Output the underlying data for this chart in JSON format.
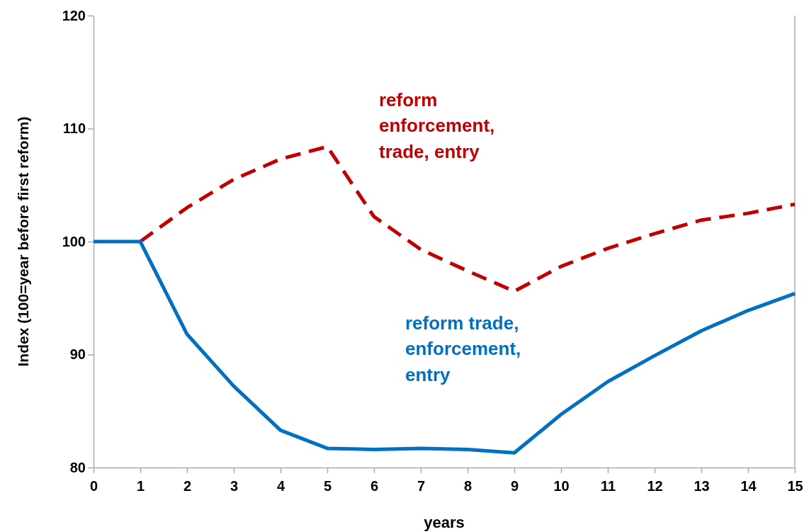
{
  "chart_data": {
    "type": "line",
    "xlabel": "years",
    "ylabel": "Index (100=year before first reform)",
    "x": [
      0,
      1,
      2,
      3,
      4,
      5,
      6,
      7,
      8,
      9,
      10,
      11,
      12,
      13,
      14,
      15
    ],
    "xlim": [
      0,
      15
    ],
    "xticks": [
      0,
      1,
      2,
      3,
      4,
      5,
      6,
      7,
      8,
      9,
      10,
      11,
      12,
      13,
      14,
      15
    ],
    "ylim": [
      80,
      120
    ],
    "yticks": [
      80,
      90,
      100,
      110,
      120
    ],
    "grid": false,
    "marker": "none",
    "series": [
      {
        "name": "reform enforcement, trade, entry",
        "color": "#c00000",
        "line_style": "dashed",
        "x": [
          1,
          2,
          3,
          4,
          5,
          6,
          7,
          8,
          9,
          10,
          11,
          12,
          13,
          14,
          15
        ],
        "values": [
          100,
          103.0,
          105.5,
          107.3,
          108.4,
          102.2,
          99.3,
          97.4,
          95.6,
          97.8,
          99.4,
          100.7,
          101.9,
          102.5,
          103.3
        ]
      },
      {
        "name": "reform trade, enforcement, entry",
        "color": "#0070c0",
        "line_style": "solid",
        "values": [
          100,
          100,
          91.8,
          87.2,
          83.3,
          81.7,
          81.6,
          81.7,
          81.6,
          81.3,
          84.7,
          87.6,
          89.9,
          92.1,
          93.9,
          95.4
        ]
      }
    ]
  }
}
